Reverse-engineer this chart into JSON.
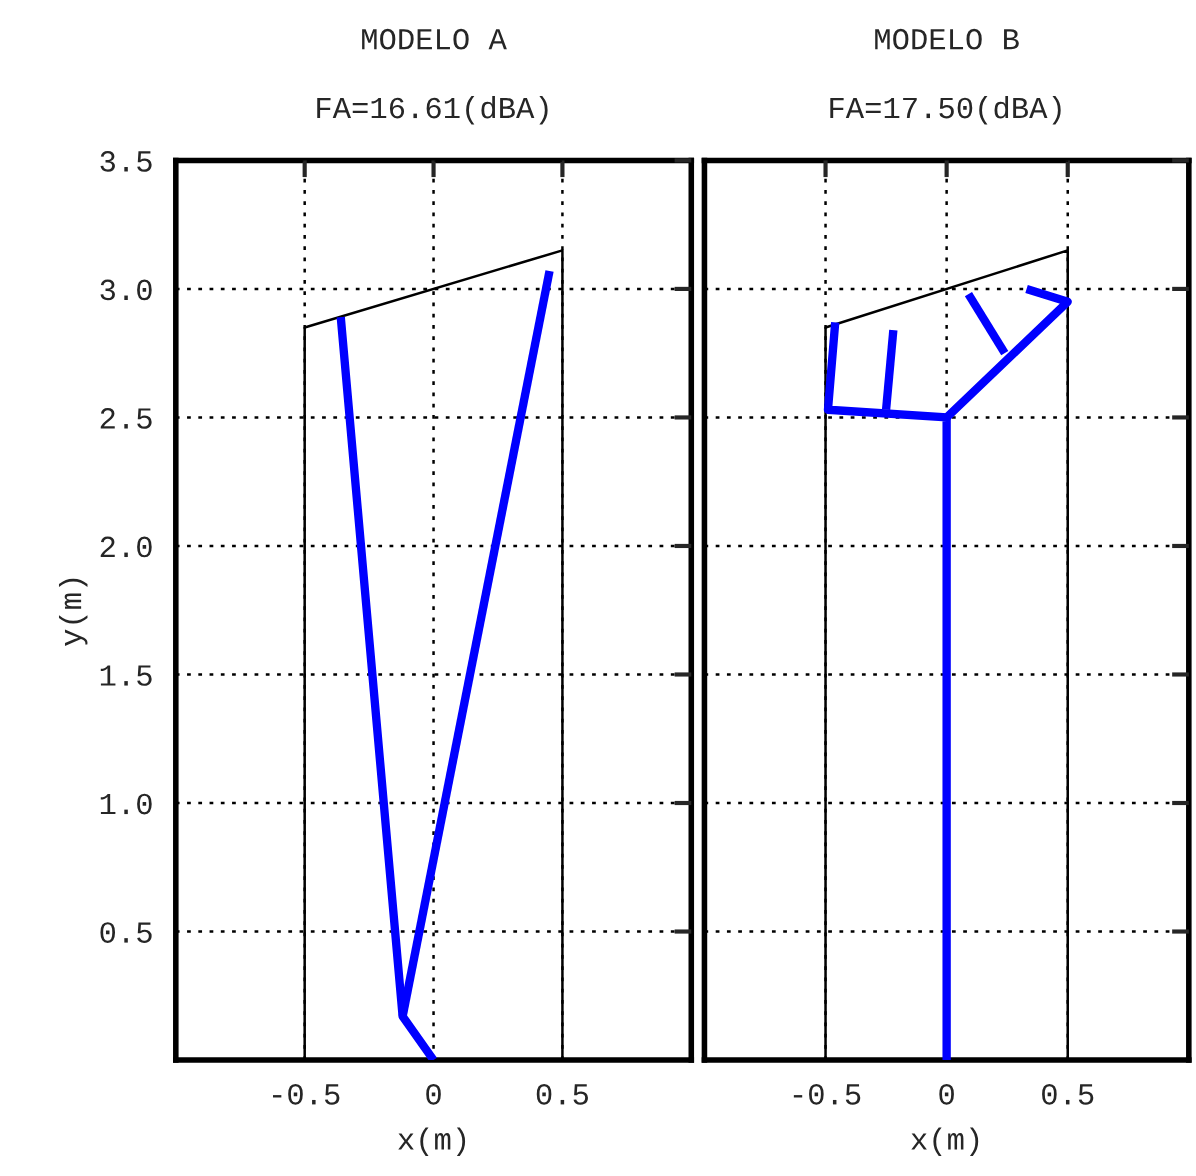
{
  "chart_data": [
    {
      "type": "line",
      "title": "MODELO A",
      "subtitle": "FA=16.61(dBA)",
      "xlabel": "x(m)",
      "ylabel": "y(m)",
      "xlim": [
        -1,
        1
      ],
      "ylim": [
        0,
        3.5
      ],
      "xticks": [
        -0.5,
        0,
        0.5
      ],
      "yticks": [
        0.5,
        {
          "value": 1,
          "label": "1.0"
        },
        1.5,
        {
          "value": 2,
          "label": "2.0"
        },
        2.5,
        {
          "value": 3,
          "label": "3.0"
        },
        3.5
      ],
      "grid": true,
      "line_style": "solid",
      "marker": "none",
      "series": [
        {
          "color": "#000000",
          "x": [
            -0.5,
            -0.5,
            0.5,
            0.5
          ],
          "values": [
            0,
            2.85,
            3.15,
            0
          ]
        },
        {
          "color": "#0000ff",
          "x": [
            -0.36,
            -0.12,
            0
          ],
          "values": [
            2.89,
            0.17,
            0
          ]
        },
        {
          "color": "#0000ff",
          "x": [
            -0.12,
            0.45
          ],
          "values": [
            0.17,
            3.07
          ]
        }
      ]
    },
    {
      "type": "line",
      "xlabel": "x(m)",
      "title": "MODELO B",
      "subtitle": "FA=17.50(dBA)",
      "xlim": [
        -1,
        1
      ],
      "ylim": [
        0,
        3.5
      ],
      "xticks": [
        -0.5,
        0,
        0.5
      ],
      "yticks": [
        0.5,
        1.0,
        1.5,
        2.0,
        2.5,
        3.0,
        3.5
      ],
      "tick_labels": "x",
      "grid": true,
      "line_style": "solid",
      "marker": "none",
      "series": [
        {
          "color": "#000000",
          "x": [
            -0.5,
            -0.5,
            0.5,
            0.5
          ],
          "values": [
            0,
            2.85,
            3.15,
            0
          ]
        },
        {
          "color": "#0000ff",
          "x": [
            0,
            0,
            -0.49,
            -0.46
          ],
          "values": [
            0,
            2.5,
            2.53,
            2.87
          ]
        },
        {
          "color": "#0000ff",
          "x": [
            -0.25,
            -0.22
          ],
          "values": [
            2.53,
            2.84
          ]
        },
        {
          "color": "#0000ff",
          "x": [
            0,
            0.5,
            0.33
          ],
          "values": [
            2.5,
            2.95,
            3.0
          ]
        },
        {
          "color": "#0000ff",
          "x": [
            0.24,
            0.09
          ],
          "values": [
            2.75,
            2.98
          ]
        }
      ]
    }
  ]
}
